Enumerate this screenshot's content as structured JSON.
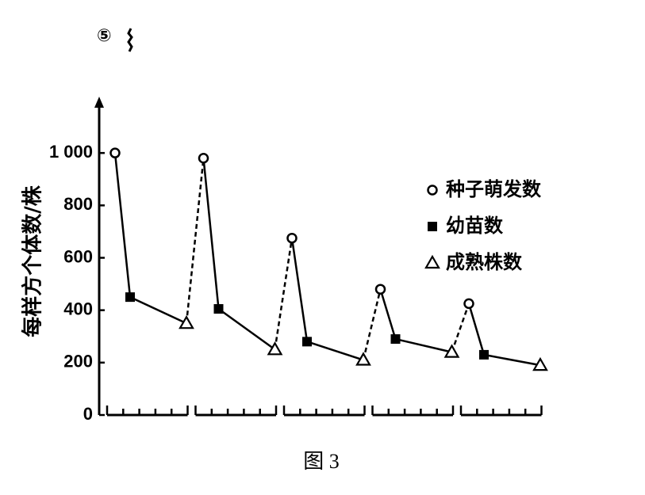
{
  "chart_data": {
    "type": "line",
    "label": "⑤",
    "ylabel": "每样方个体数/株",
    "caption": "图 3",
    "categories": [
      null,
      null,
      null,
      null,
      null
    ],
    "series": [
      {
        "name": "种子萌发数",
        "color": "#000000",
        "marker": "circle",
        "values": [
          1000,
          980,
          675,
          480,
          425
        ]
      },
      {
        "name": "幼苗数",
        "color": "#000000",
        "marker": "square",
        "values": [
          450,
          405,
          280,
          290,
          230
        ]
      },
      {
        "name": "成熟株数",
        "color": "#000000",
        "marker": "triangle",
        "values": [
          350,
          250,
          210,
          240,
          190
        ]
      }
    ],
    "ylim": [
      0,
      1200
    ],
    "yticks": [
      0,
      200,
      400,
      600,
      800,
      {
        "value": 1000,
        "label": "1 000"
      }
    ]
  }
}
